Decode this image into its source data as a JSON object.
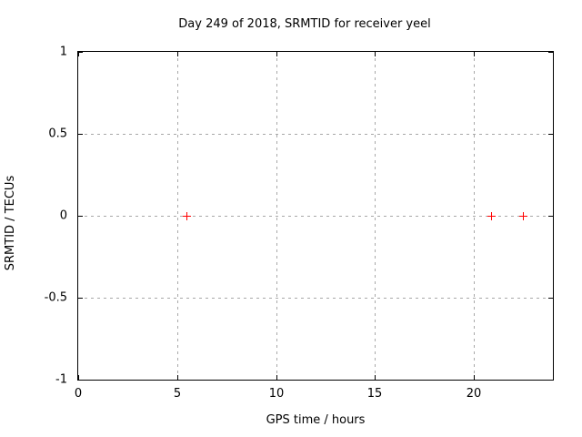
{
  "chart_data": {
    "type": "scatter",
    "title": "Day 249 of 2018, SRMTID for receiver yeel",
    "xlabel": "GPS time / hours",
    "ylabel": "SRMTID / TECUs",
    "xlim": [
      0,
      24
    ],
    "ylim": [
      -1,
      1
    ],
    "xticks": [
      0,
      5,
      10,
      15,
      20
    ],
    "yticks": [
      -1,
      -0.5,
      0,
      0.5,
      1
    ],
    "grid": true,
    "legend": "none",
    "series": [
      {
        "name": "SRMTID",
        "marker": "plus",
        "color": "#ff0000",
        "points": [
          {
            "x": 5.5,
            "y": 0
          },
          {
            "x": 20.9,
            "y": 0
          },
          {
            "x": 22.5,
            "y": 0
          }
        ]
      }
    ],
    "colors": {
      "background": "#ffffff",
      "border": "#000000",
      "text": "#000000",
      "grid": "#a8a8a8"
    }
  }
}
